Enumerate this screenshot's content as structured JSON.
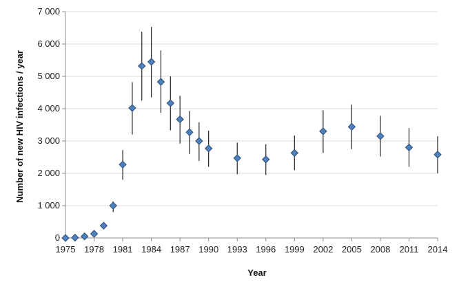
{
  "chart_data": {
    "type": "scatter",
    "xlabel": "Year",
    "ylabel": "Number of new HIV infections / year",
    "ylim": [
      0,
      7000
    ],
    "yticks": [
      0,
      1000,
      2000,
      3000,
      4000,
      5000,
      6000,
      7000
    ],
    "ytick_labels": [
      "0",
      "1 000",
      "2 000",
      "3 000",
      "4 000",
      "5 000",
      "6 000",
      "7 000"
    ],
    "xlim": [
      1975,
      2014
    ],
    "xticks": [
      1975,
      1978,
      1981,
      1984,
      1987,
      1990,
      1993,
      1996,
      1999,
      2002,
      2005,
      2008,
      2011,
      2014
    ],
    "xtick_labels": [
      "1975",
      "1978",
      "1981",
      "1984",
      "1987",
      "1990",
      "1993",
      "1996",
      "1999",
      "2002",
      "2005",
      "2008",
      "2011",
      "2014"
    ],
    "grid": "horizontal",
    "marker_color": "#4f81bd",
    "marker_edge_color": "#2c4d75",
    "errorbar_color": "#222222",
    "points": [
      {
        "x": 1975,
        "y": 0,
        "low": 0,
        "high": 0
      },
      {
        "x": 1976,
        "y": 10,
        "low": 10,
        "high": 10
      },
      {
        "x": 1977,
        "y": 50,
        "low": 50,
        "high": 50
      },
      {
        "x": 1978,
        "y": 130,
        "low": 130,
        "high": 130
      },
      {
        "x": 1979,
        "y": 380,
        "low": 380,
        "high": 380
      },
      {
        "x": 1980,
        "y": 1000,
        "low": 800,
        "high": 1130
      },
      {
        "x": 1981,
        "y": 2270,
        "low": 1800,
        "high": 2720
      },
      {
        "x": 1982,
        "y": 4020,
        "low": 3200,
        "high": 4820
      },
      {
        "x": 1983,
        "y": 5320,
        "low": 4250,
        "high": 6380
      },
      {
        "x": 1984,
        "y": 5450,
        "low": 4350,
        "high": 6530
      },
      {
        "x": 1985,
        "y": 4830,
        "low": 3870,
        "high": 5800
      },
      {
        "x": 1986,
        "y": 4170,
        "low": 3330,
        "high": 5000
      },
      {
        "x": 1987,
        "y": 3670,
        "low": 2920,
        "high": 4400
      },
      {
        "x": 1988,
        "y": 3270,
        "low": 2600,
        "high": 3930
      },
      {
        "x": 1989,
        "y": 3000,
        "low": 2380,
        "high": 3580
      },
      {
        "x": 1990,
        "y": 2770,
        "low": 2200,
        "high": 3320
      },
      {
        "x": 1993,
        "y": 2470,
        "low": 1970,
        "high": 2950
      },
      {
        "x": 1996,
        "y": 2430,
        "low": 1950,
        "high": 2900
      },
      {
        "x": 1999,
        "y": 2630,
        "low": 2100,
        "high": 3170
      },
      {
        "x": 2002,
        "y": 3300,
        "low": 2630,
        "high": 3950
      },
      {
        "x": 2005,
        "y": 3440,
        "low": 2750,
        "high": 4130
      },
      {
        "x": 2008,
        "y": 3150,
        "low": 2520,
        "high": 3780
      },
      {
        "x": 2011,
        "y": 2800,
        "low": 2200,
        "high": 3400
      },
      {
        "x": 2014,
        "y": 2580,
        "low": 2000,
        "high": 3150
      }
    ]
  }
}
